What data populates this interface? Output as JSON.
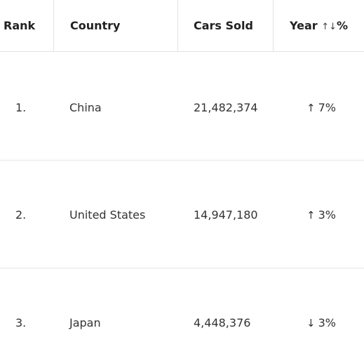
{
  "header": {
    "rank": "Rank",
    "country": "Country",
    "cars_sold": "Cars Sold",
    "year": "Year",
    "year_sort_icon": "↑↓",
    "year_suffix": "%"
  },
  "rows": [
    {
      "rank": "1.",
      "country": "China",
      "cars_sold": "21,482,374",
      "change_arrow": "↑",
      "change": "7%"
    },
    {
      "rank": "2.",
      "country": "United States",
      "cars_sold": "14,947,180",
      "change_arrow": "↑",
      "change": "3%"
    },
    {
      "rank": "3.",
      "country": "Japan",
      "cars_sold": "4,448,376",
      "change_arrow": "↓",
      "change": "3%"
    }
  ]
}
